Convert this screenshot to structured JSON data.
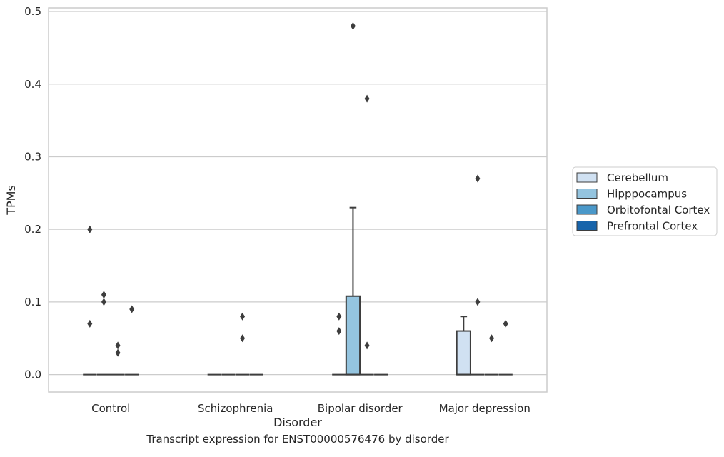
{
  "caption": "Transcript expression for ENST00000576476 by disorder",
  "colors": {
    "Cerebellum": "#d0e1f2",
    "Hipppocampus": "#94c4df",
    "Orbitofontal Cortex": "#4a98c9",
    "Prefrontal Cortex": "#1764ab",
    "grid": "#cccccc",
    "axes_edge": "#cccccc",
    "box_line": "#3d3d3d",
    "outlier": "#3d3d3d"
  },
  "chart_data": {
    "type": "box",
    "xlabel": "Disorder",
    "ylabel": "TPMs",
    "categories": [
      "Control",
      "Schizophrenia",
      "Bipolar disorder",
      "Major depression"
    ],
    "hue_order": [
      "Cerebellum",
      "Hipppocampus",
      "Orbitofontal Cortex",
      "Prefrontal Cortex"
    ],
    "ylim": [
      -0.024,
      0.505
    ],
    "yticks": [
      0.0,
      0.1,
      0.2,
      0.3,
      0.4,
      0.5
    ],
    "ytick_labels": [
      "0.0",
      "0.1",
      "0.2",
      "0.3",
      "0.4",
      "0.5"
    ],
    "grid": true,
    "legend_position": "outside-right",
    "boxes": [
      {
        "category": "Control",
        "hue": "Cerebellum",
        "q1": 0,
        "median": 0,
        "q3": 0,
        "whisker_low": 0,
        "whisker_high": 0,
        "outliers": [
          0.2,
          0.07
        ]
      },
      {
        "category": "Control",
        "hue": "Hipppocampus",
        "q1": 0,
        "median": 0,
        "q3": 0,
        "whisker_low": 0,
        "whisker_high": 0,
        "outliers": [
          0.11,
          0.1
        ]
      },
      {
        "category": "Control",
        "hue": "Orbitofontal Cortex",
        "q1": 0,
        "median": 0,
        "q3": 0,
        "whisker_low": 0,
        "whisker_high": 0,
        "outliers": [
          0.04,
          0.03
        ]
      },
      {
        "category": "Control",
        "hue": "Prefrontal Cortex",
        "q1": 0,
        "median": 0,
        "q3": 0,
        "whisker_low": 0,
        "whisker_high": 0,
        "outliers": [
          0.09
        ]
      },
      {
        "category": "Schizophrenia",
        "hue": "Cerebellum",
        "q1": 0,
        "median": 0,
        "q3": 0,
        "whisker_low": 0,
        "whisker_high": 0,
        "outliers": []
      },
      {
        "category": "Schizophrenia",
        "hue": "Hipppocampus",
        "q1": 0,
        "median": 0,
        "q3": 0,
        "whisker_low": 0,
        "whisker_high": 0,
        "outliers": []
      },
      {
        "category": "Schizophrenia",
        "hue": "Orbitofontal Cortex",
        "q1": 0,
        "median": 0,
        "q3": 0,
        "whisker_low": 0,
        "whisker_high": 0,
        "outliers": [
          0.08,
          0.05
        ]
      },
      {
        "category": "Schizophrenia",
        "hue": "Prefrontal Cortex",
        "q1": 0,
        "median": 0,
        "q3": 0,
        "whisker_low": 0,
        "whisker_high": 0,
        "outliers": []
      },
      {
        "category": "Bipolar disorder",
        "hue": "Cerebellum",
        "q1": 0,
        "median": 0,
        "q3": 0,
        "whisker_low": 0,
        "whisker_high": 0,
        "outliers": [
          0.08,
          0.06
        ]
      },
      {
        "category": "Bipolar disorder",
        "hue": "Hipppocampus",
        "q1": 0,
        "median": 0,
        "q3": 0.108,
        "whisker_low": 0,
        "whisker_high": 0.23,
        "outliers": [
          0.48
        ]
      },
      {
        "category": "Bipolar disorder",
        "hue": "Orbitofontal Cortex",
        "q1": 0,
        "median": 0,
        "q3": 0,
        "whisker_low": 0,
        "whisker_high": 0,
        "outliers": [
          0.38,
          0.04
        ]
      },
      {
        "category": "Bipolar disorder",
        "hue": "Prefrontal Cortex",
        "q1": 0,
        "median": 0,
        "q3": 0,
        "whisker_low": 0,
        "whisker_high": 0,
        "outliers": []
      },
      {
        "category": "Major depression",
        "hue": "Cerebellum",
        "q1": 0,
        "median": 0,
        "q3": 0.06,
        "whisker_low": 0,
        "whisker_high": 0.08,
        "outliers": []
      },
      {
        "category": "Major depression",
        "hue": "Hipppocampus",
        "q1": 0,
        "median": 0,
        "q3": 0,
        "whisker_low": 0,
        "whisker_high": 0,
        "outliers": [
          0.27,
          0.1
        ]
      },
      {
        "category": "Major depression",
        "hue": "Orbitofontal Cortex",
        "q1": 0,
        "median": 0,
        "q3": 0,
        "whisker_low": 0,
        "whisker_high": 0,
        "outliers": [
          0.05
        ]
      },
      {
        "category": "Major depression",
        "hue": "Prefrontal Cortex",
        "q1": 0,
        "median": 0,
        "q3": 0,
        "whisker_low": 0,
        "whisker_high": 0,
        "outliers": [
          0.07
        ]
      }
    ]
  }
}
